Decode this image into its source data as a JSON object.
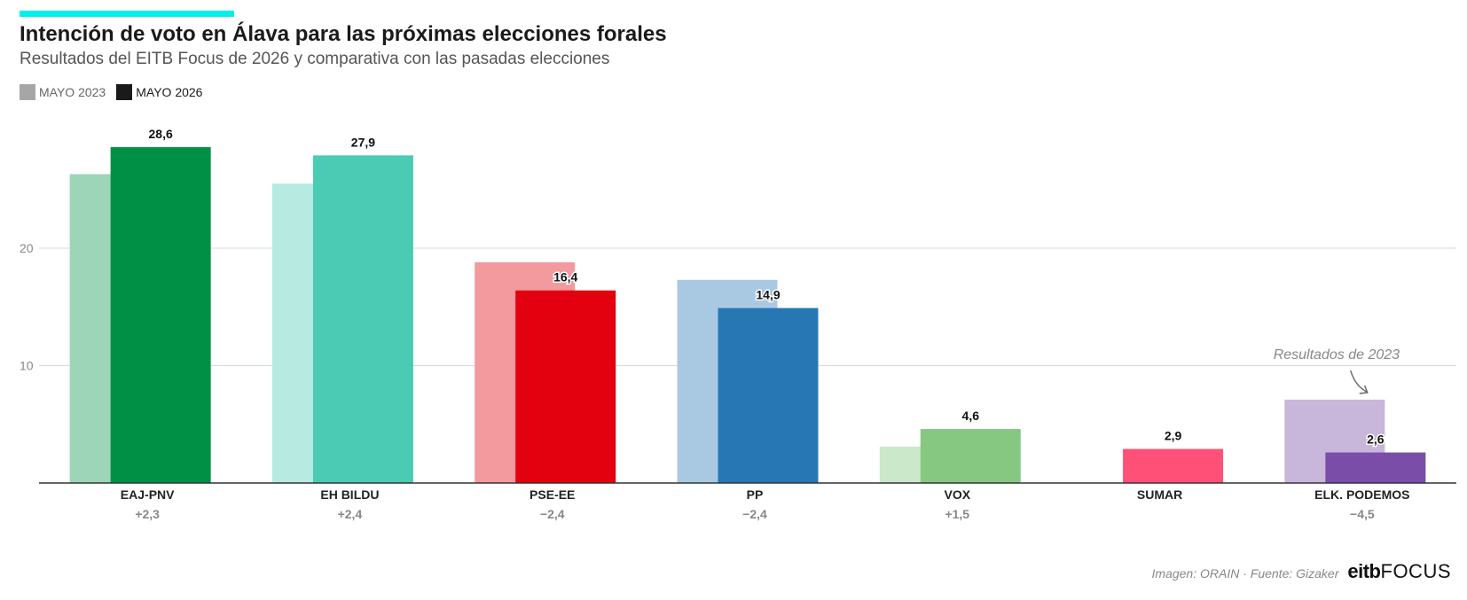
{
  "header": {
    "accent_color": "#00F0F0",
    "title": "Intención de voto en Álava para las próximas elecciones forales",
    "subtitle": "Resultados del EITB Focus de 2026 y comparativa con las pasadas elecciones"
  },
  "legend": {
    "items": [
      {
        "label": "MAYO 2023",
        "color": "#A6A6A6"
      },
      {
        "label": "MAYO 2026",
        "color": "#1A1A1A"
      }
    ]
  },
  "chart_data": {
    "type": "bar",
    "title": "Intención de voto en Álava para las próximas elecciones forales",
    "subtitle": "Resultados del EITB Focus de 2026 y comparativa con las pasadas elecciones",
    "categories": [
      "EAJ-PNV",
      "EH BILDU",
      "PSE-EE",
      "PP",
      "VOX",
      "SUMAR",
      "ELK. PODEMOS"
    ],
    "series": [
      {
        "name": "MAYO 2023",
        "values": [
          26.3,
          25.5,
          18.8,
          17.3,
          3.1,
          null,
          7.1
        ],
        "colors": [
          "#9DD5B8",
          "#B7EBE1",
          "#F29A9E",
          "#A9C9E3",
          "#CCE8CB",
          null,
          "#C9B6DB"
        ]
      },
      {
        "name": "MAYO 2026",
        "values": [
          28.6,
          27.9,
          16.4,
          14.9,
          4.6,
          2.9,
          2.6
        ],
        "colors": [
          "#009045",
          "#4BCBB4",
          "#E3000F",
          "#2777B4",
          "#86C882",
          "#FF5077",
          "#7A4DA8"
        ]
      }
    ],
    "value_labels": [
      "28,6",
      "27,9",
      "16,4",
      "14,9",
      "4,6",
      "2,9",
      "2,6"
    ],
    "differences": [
      "+2,3",
      "+2,4",
      "−2,4",
      "−2,4",
      "+1,5",
      "",
      "−4,5"
    ],
    "y_ticks": [
      {
        "value": 10,
        "label": "10"
      },
      {
        "value": 20,
        "label": "20"
      }
    ],
    "ylim": [
      0,
      30
    ],
    "grid": true,
    "annotation": {
      "text": "Resultados de 2023",
      "category": "ELK. PODEMOS"
    }
  },
  "footer": {
    "credit": "Imagen: ORAIN · Fuente: Gizaker",
    "logo_bold": "eitb",
    "logo_light": "FOCUS"
  }
}
